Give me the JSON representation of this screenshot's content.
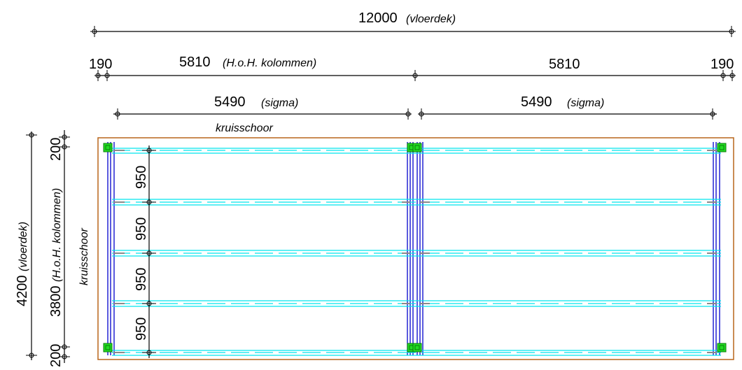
{
  "dimensions": {
    "total_width": {
      "value": "12000",
      "note": "(vloerdek)"
    },
    "edge_left": "190",
    "edge_right": "190",
    "col_left": {
      "value": "5810",
      "note": "(H.o.H. kolommen)"
    },
    "col_right": {
      "value": "5810"
    },
    "sigma_left": {
      "value": "5490",
      "note": "(sigma)"
    },
    "sigma_right": {
      "value": "5490",
      "note": "(sigma)"
    },
    "total_depth": {
      "value": "4200",
      "note": "(vloerdek)"
    },
    "col_depth": {
      "value": "3800",
      "note": "(H.o.H. kolommen)"
    },
    "edge_top": "200",
    "edge_bottom": "200",
    "spacings": [
      "950",
      "950",
      "950",
      "950"
    ]
  },
  "labels": {
    "brace_top": "kruisschoor",
    "brace_left": "kruisschoor"
  },
  "colors": {
    "deck_outline": "#b8651a",
    "beam": "#00e5ee",
    "column": "#0000cc",
    "node": "#22dd22",
    "dim_line": "#000000"
  }
}
